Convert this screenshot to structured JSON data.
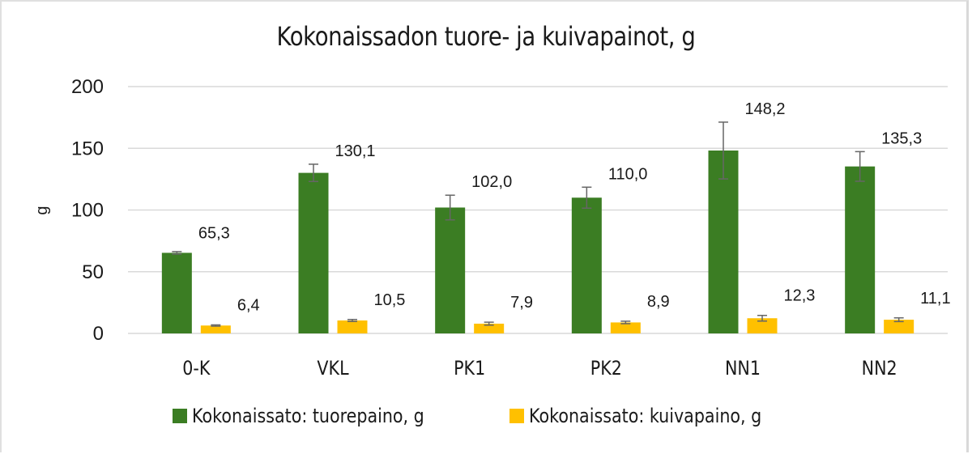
{
  "chart_data": {
    "type": "bar",
    "title": "Kokonaissadon tuore- ja kuivapainot, g",
    "xlabel": "",
    "ylabel": "g",
    "ylim": [
      0,
      200
    ],
    "yticks": [
      0,
      50,
      100,
      150,
      200
    ],
    "grid": true,
    "legend_position": "bottom",
    "categories": [
      "0-K",
      "VKL",
      "PK1",
      "PK2",
      "NN1",
      "NN2"
    ],
    "series": [
      {
        "name": "Kokonaissato: tuorepaino, g",
        "color": "#3b7d23",
        "values": [
          65.3,
          130.1,
          102.0,
          110.0,
          148.2,
          135.3
        ],
        "labels": [
          "65,3",
          "130,1",
          "102,0",
          "110,0",
          "148,2",
          "135,3"
        ],
        "error": [
          1.0,
          7.0,
          10.0,
          8.5,
          23.0,
          12.0
        ]
      },
      {
        "name": "Kokonaissato: kuivapaino, g",
        "color": "#ffc000",
        "values": [
          6.4,
          10.5,
          7.9,
          8.9,
          12.3,
          11.1
        ],
        "labels": [
          "6,4",
          "10,5",
          "7,9",
          "8,9",
          "12,3",
          "11,1"
        ],
        "error": [
          0.5,
          0.8,
          1.2,
          1.0,
          2.3,
          1.5
        ]
      }
    ]
  },
  "legend": {
    "items": [
      {
        "label": "Kokonaissato: tuorepaino, g",
        "color": "#3b7d23"
      },
      {
        "label": "Kokonaissato: kuivapaino, g",
        "color": "#ffc000"
      }
    ]
  }
}
